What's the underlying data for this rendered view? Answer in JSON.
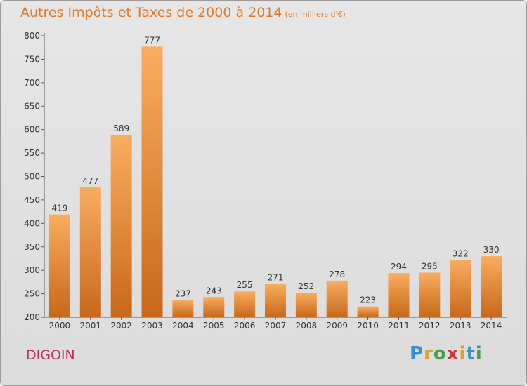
{
  "title": "Autres Impôts et Taxes de 2000 à 2014",
  "subtitle": "(en milliers d'€)",
  "town": "DIGOIN",
  "logo": "Proxiti",
  "colors": {
    "bar_light": "#f7a85a",
    "bar_dark": "#c8681a",
    "title": "#e07a2a",
    "town": "#c0305a"
  },
  "chart_data": {
    "type": "bar",
    "categories": [
      "2000",
      "2001",
      "2002",
      "2003",
      "2004",
      "2005",
      "2006",
      "2007",
      "2008",
      "2009",
      "2010",
      "2011",
      "2012",
      "2013",
      "2014"
    ],
    "values": [
      419,
      477,
      589,
      777,
      237,
      243,
      255,
      271,
      252,
      278,
      223,
      294,
      295,
      322,
      330
    ],
    "title": "Autres Impôts et Taxes de 2000 à 2014",
    "subtitle": "(en milliers d'€)",
    "ylim": [
      200,
      800
    ],
    "yticks": [
      200,
      250,
      300,
      350,
      400,
      450,
      500,
      550,
      600,
      650,
      700,
      750,
      800
    ],
    "grid": false,
    "data_labels": true
  }
}
